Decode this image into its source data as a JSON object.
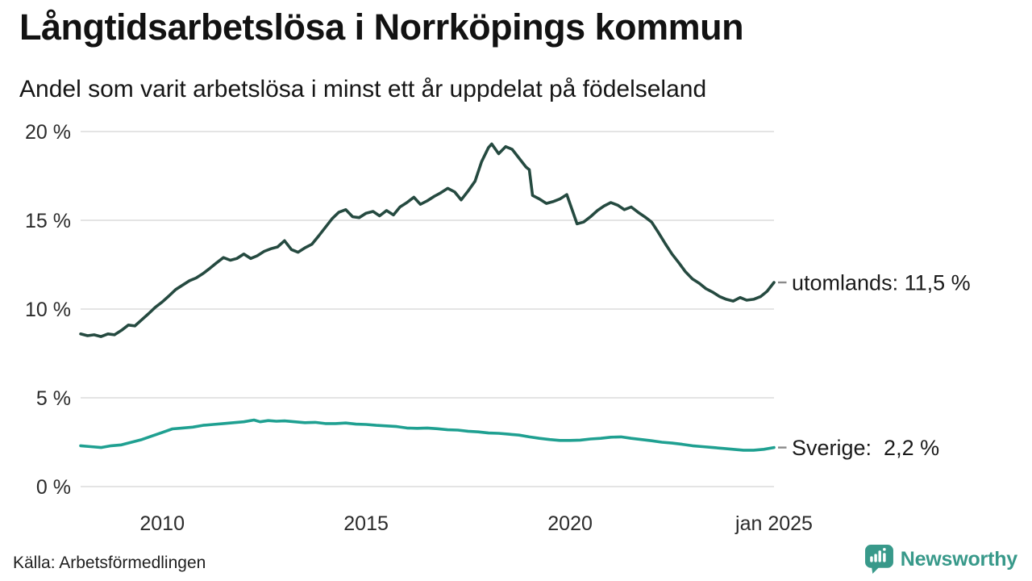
{
  "header": {
    "title": "Långtidsarbetslösa i Norrköpings kommun",
    "subtitle": "Andel som varit arbetslösa i minst ett år uppdelat på födelseland"
  },
  "footer": {
    "source": "Källa: Arbetsförmedlingen",
    "brand": "Newsworthy",
    "brand_color": "#38998a"
  },
  "chart_data": {
    "type": "line",
    "title": "Långtidsarbetslösa i Norrköpings kommun",
    "subtitle": "Andel som varit arbetslösa i minst ett år uppdelat på födelseland",
    "grid": true,
    "grid_color": "#e4e4e4",
    "text_color": "#2b2b2b",
    "label_tick_color": "#8a8a8a",
    "x_axis": {
      "range": [
        2008,
        2025
      ],
      "ticks": [
        {
          "label": "2010",
          "year": 2010
        },
        {
          "label": "2015",
          "year": 2015
        },
        {
          "label": "2020",
          "year": 2020
        },
        {
          "label": "jan 2025",
          "year": 2025
        }
      ]
    },
    "y_axis": {
      "unit": "%",
      "range": [
        0,
        20
      ],
      "ticks": [
        {
          "label": "0 %",
          "value": 0
        },
        {
          "label": "5 %",
          "value": 5
        },
        {
          "label": "10 %",
          "value": 10
        },
        {
          "label": "15 %",
          "value": 15
        },
        {
          "label": "20 %",
          "value": 20
        }
      ]
    },
    "series": [
      {
        "name": "utomlands",
        "color": "#254a40",
        "end_label": "utomlands: 11,5 %",
        "last_value": 11.5,
        "points": [
          [
            2008.0,
            8.6
          ],
          [
            2008.17,
            8.5
          ],
          [
            2008.33,
            8.55
          ],
          [
            2008.5,
            8.45
          ],
          [
            2008.67,
            8.6
          ],
          [
            2008.83,
            8.55
          ],
          [
            2009.0,
            8.8
          ],
          [
            2009.17,
            9.1
          ],
          [
            2009.33,
            9.05
          ],
          [
            2009.5,
            9.4
          ],
          [
            2009.67,
            9.75
          ],
          [
            2009.83,
            10.1
          ],
          [
            2010.0,
            10.4
          ],
          [
            2010.17,
            10.75
          ],
          [
            2010.33,
            11.1
          ],
          [
            2010.5,
            11.35
          ],
          [
            2010.67,
            11.6
          ],
          [
            2010.83,
            11.75
          ],
          [
            2011.0,
            12.0
          ],
          [
            2011.17,
            12.3
          ],
          [
            2011.33,
            12.6
          ],
          [
            2011.5,
            12.9
          ],
          [
            2011.67,
            12.75
          ],
          [
            2011.83,
            12.85
          ],
          [
            2012.0,
            13.1
          ],
          [
            2012.17,
            12.85
          ],
          [
            2012.33,
            13.0
          ],
          [
            2012.5,
            13.25
          ],
          [
            2012.67,
            13.4
          ],
          [
            2012.83,
            13.5
          ],
          [
            2013.0,
            13.85
          ],
          [
            2013.17,
            13.35
          ],
          [
            2013.33,
            13.2
          ],
          [
            2013.5,
            13.45
          ],
          [
            2013.67,
            13.65
          ],
          [
            2013.83,
            14.1
          ],
          [
            2014.0,
            14.6
          ],
          [
            2014.17,
            15.1
          ],
          [
            2014.33,
            15.45
          ],
          [
            2014.5,
            15.6
          ],
          [
            2014.67,
            15.2
          ],
          [
            2014.83,
            15.15
          ],
          [
            2015.0,
            15.4
          ],
          [
            2015.17,
            15.5
          ],
          [
            2015.33,
            15.25
          ],
          [
            2015.5,
            15.55
          ],
          [
            2015.67,
            15.3
          ],
          [
            2015.83,
            15.75
          ],
          [
            2016.0,
            16.0
          ],
          [
            2016.17,
            16.3
          ],
          [
            2016.33,
            15.9
          ],
          [
            2016.5,
            16.1
          ],
          [
            2016.67,
            16.35
          ],
          [
            2016.83,
            16.55
          ],
          [
            2017.0,
            16.8
          ],
          [
            2017.17,
            16.6
          ],
          [
            2017.33,
            16.15
          ],
          [
            2017.5,
            16.65
          ],
          [
            2017.67,
            17.2
          ],
          [
            2017.83,
            18.3
          ],
          [
            2018.0,
            19.1
          ],
          [
            2018.08,
            19.3
          ],
          [
            2018.25,
            18.75
          ],
          [
            2018.42,
            19.15
          ],
          [
            2018.58,
            19.0
          ],
          [
            2018.75,
            18.5
          ],
          [
            2018.92,
            18.0
          ],
          [
            2019.0,
            17.85
          ],
          [
            2019.08,
            16.4
          ],
          [
            2019.25,
            16.2
          ],
          [
            2019.42,
            15.95
          ],
          [
            2019.58,
            16.05
          ],
          [
            2019.75,
            16.2
          ],
          [
            2019.92,
            16.45
          ],
          [
            2020.08,
            15.4
          ],
          [
            2020.17,
            14.8
          ],
          [
            2020.33,
            14.9
          ],
          [
            2020.5,
            15.2
          ],
          [
            2020.67,
            15.55
          ],
          [
            2020.83,
            15.8
          ],
          [
            2021.0,
            16.0
          ],
          [
            2021.17,
            15.85
          ],
          [
            2021.33,
            15.6
          ],
          [
            2021.5,
            15.75
          ],
          [
            2021.67,
            15.45
          ],
          [
            2021.83,
            15.2
          ],
          [
            2022.0,
            14.9
          ],
          [
            2022.17,
            14.3
          ],
          [
            2022.33,
            13.7
          ],
          [
            2022.5,
            13.1
          ],
          [
            2022.67,
            12.6
          ],
          [
            2022.83,
            12.1
          ],
          [
            2023.0,
            11.7
          ],
          [
            2023.17,
            11.45
          ],
          [
            2023.33,
            11.15
          ],
          [
            2023.5,
            10.95
          ],
          [
            2023.67,
            10.7
          ],
          [
            2023.83,
            10.55
          ],
          [
            2024.0,
            10.45
          ],
          [
            2024.17,
            10.65
          ],
          [
            2024.33,
            10.5
          ],
          [
            2024.5,
            10.55
          ],
          [
            2024.67,
            10.7
          ],
          [
            2024.83,
            11.0
          ],
          [
            2025.0,
            11.5
          ]
        ]
      },
      {
        "name": "Sverige",
        "color": "#1fa091",
        "end_label": "Sverige:  2,2 %",
        "last_value": 2.2,
        "points": [
          [
            2008.0,
            2.3
          ],
          [
            2008.25,
            2.25
          ],
          [
            2008.5,
            2.2
          ],
          [
            2008.75,
            2.3
          ],
          [
            2009.0,
            2.35
          ],
          [
            2009.25,
            2.5
          ],
          [
            2009.5,
            2.65
          ],
          [
            2009.75,
            2.85
          ],
          [
            2010.0,
            3.05
          ],
          [
            2010.25,
            3.25
          ],
          [
            2010.5,
            3.3
          ],
          [
            2010.75,
            3.35
          ],
          [
            2011.0,
            3.45
          ],
          [
            2011.25,
            3.5
          ],
          [
            2011.5,
            3.55
          ],
          [
            2011.75,
            3.6
          ],
          [
            2012.0,
            3.65
          ],
          [
            2012.25,
            3.75
          ],
          [
            2012.4,
            3.65
          ],
          [
            2012.6,
            3.72
          ],
          [
            2012.8,
            3.68
          ],
          [
            2013.0,
            3.7
          ],
          [
            2013.25,
            3.65
          ],
          [
            2013.5,
            3.6
          ],
          [
            2013.75,
            3.62
          ],
          [
            2014.0,
            3.55
          ],
          [
            2014.25,
            3.55
          ],
          [
            2014.5,
            3.58
          ],
          [
            2014.75,
            3.52
          ],
          [
            2015.0,
            3.5
          ],
          [
            2015.25,
            3.45
          ],
          [
            2015.5,
            3.42
          ],
          [
            2015.75,
            3.38
          ],
          [
            2016.0,
            3.3
          ],
          [
            2016.25,
            3.28
          ],
          [
            2016.5,
            3.3
          ],
          [
            2016.75,
            3.26
          ],
          [
            2017.0,
            3.2
          ],
          [
            2017.25,
            3.18
          ],
          [
            2017.5,
            3.12
          ],
          [
            2017.75,
            3.08
          ],
          [
            2018.0,
            3.02
          ],
          [
            2018.25,
            3.0
          ],
          [
            2018.5,
            2.95
          ],
          [
            2018.75,
            2.9
          ],
          [
            2019.0,
            2.8
          ],
          [
            2019.25,
            2.72
          ],
          [
            2019.5,
            2.65
          ],
          [
            2019.75,
            2.6
          ],
          [
            2020.0,
            2.6
          ],
          [
            2020.25,
            2.62
          ],
          [
            2020.5,
            2.68
          ],
          [
            2020.75,
            2.72
          ],
          [
            2021.0,
            2.78
          ],
          [
            2021.25,
            2.8
          ],
          [
            2021.5,
            2.72
          ],
          [
            2021.75,
            2.65
          ],
          [
            2022.0,
            2.58
          ],
          [
            2022.25,
            2.5
          ],
          [
            2022.5,
            2.45
          ],
          [
            2022.75,
            2.38
          ],
          [
            2023.0,
            2.3
          ],
          [
            2023.25,
            2.25
          ],
          [
            2023.5,
            2.2
          ],
          [
            2023.75,
            2.15
          ],
          [
            2024.0,
            2.1
          ],
          [
            2024.25,
            2.05
          ],
          [
            2024.5,
            2.05
          ],
          [
            2024.75,
            2.1
          ],
          [
            2025.0,
            2.2
          ]
        ]
      }
    ]
  }
}
